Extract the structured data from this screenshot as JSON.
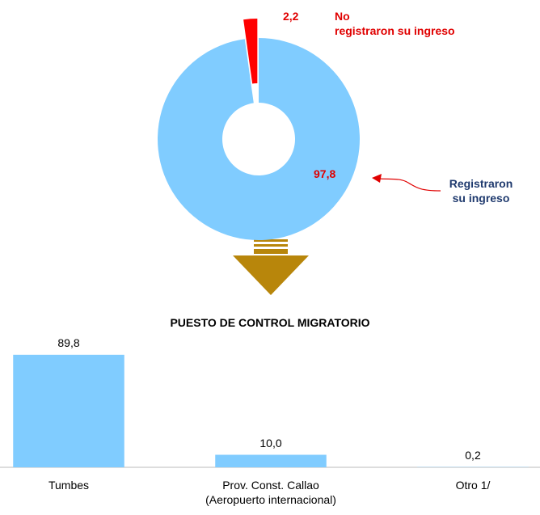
{
  "chart_data": [
    {
      "type": "donut",
      "categories": [
        "Registraron\nsu ingreso",
        "No\nregistraron su ingreso"
      ],
      "values": [
        97.8,
        2.2
      ],
      "value_labels": [
        "97,8",
        "2,2"
      ],
      "colors": [
        "#80ccff",
        "#ff0000"
      ]
    },
    {
      "type": "bar",
      "title": "PUESTO DE CONTROL MIGRATORIO",
      "categories": [
        "Tumbes",
        "Prov. Const. Callao\n(Aeropuerto internacional)",
        "Otro 1/"
      ],
      "values": [
        89.8,
        10.0,
        0.2
      ],
      "value_labels": [
        "89,8",
        "10,0",
        "0,2"
      ],
      "color": "#80ccff"
    }
  ]
}
